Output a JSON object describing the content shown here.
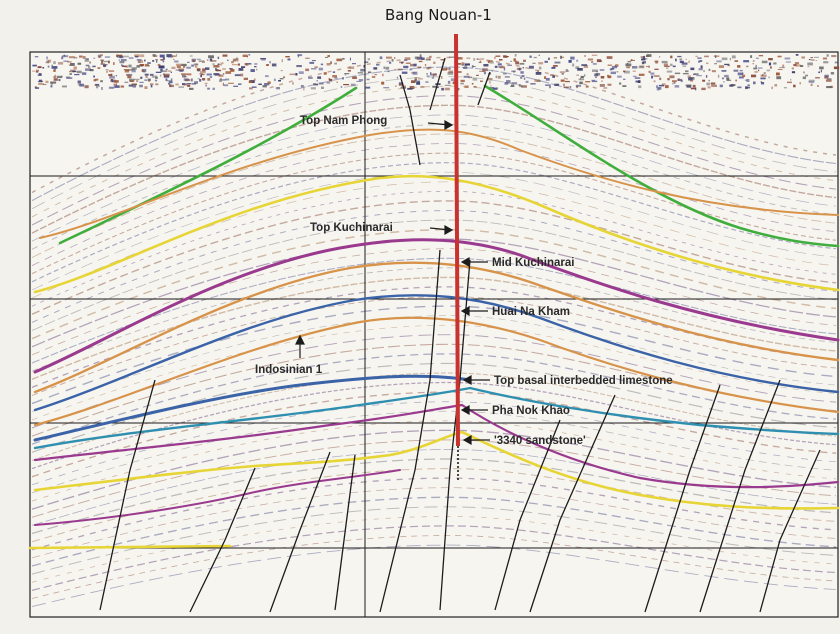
{
  "well": {
    "name": "Bang Nouan-1",
    "color": "#c8332f"
  },
  "labels": {
    "top_nam_phong": "Top Nam Phong",
    "top_kuchinarai": "Top Kuchinarai",
    "mid_kuchinarai": "Mid Kuchinarai",
    "huai_na_kham": "Huai Na Kham",
    "indosinian_1": "Indosinian 1",
    "top_basal_limestone": "Top  basal interbedded limestone",
    "pha_nok_khao": "Pha Nok Khao",
    "sandstone_3340": "'3340 sandstone'"
  },
  "horizon_colors": {
    "green": "#3fae3c",
    "orange": "#d8934a",
    "yellow": "#e6d534",
    "purple": "#9a3a8e",
    "blue": "#3a63a8",
    "teal": "#2e8fb0"
  },
  "section_background": "#f7f5f0",
  "fault_color": "#1c1c1c",
  "grid_color": "#1c1c1c"
}
